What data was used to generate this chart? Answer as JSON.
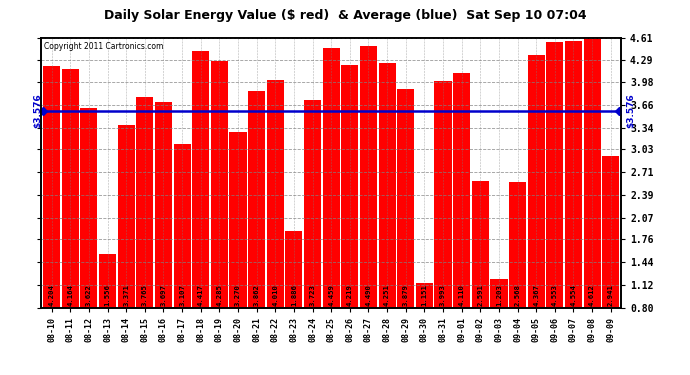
{
  "title": "Daily Solar Energy Value ($ red)  & Average (blue)  Sat Sep 10 07:04",
  "copyright": "Copyright 2011 Cartronics.com",
  "average": 3.576,
  "average_label": "$3.576",
  "bar_color": "#FF0000",
  "avg_line_color": "#0000CC",
  "background_color": "#FFFFFF",
  "plot_bg_color": "#FFFFFF",
  "ylim_min": 0.8,
  "ylim_max": 4.61,
  "yticks": [
    0.8,
    1.12,
    1.44,
    1.76,
    2.07,
    2.39,
    2.71,
    3.03,
    3.34,
    3.66,
    3.98,
    4.29,
    4.61
  ],
  "categories": [
    "08-10",
    "08-11",
    "08-12",
    "08-13",
    "08-14",
    "08-15",
    "08-16",
    "08-17",
    "08-18",
    "08-19",
    "08-20",
    "08-21",
    "08-22",
    "08-23",
    "08-24",
    "08-25",
    "08-26",
    "08-27",
    "08-28",
    "08-29",
    "08-30",
    "08-31",
    "09-01",
    "09-02",
    "09-03",
    "09-04",
    "09-05",
    "09-06",
    "09-07",
    "09-08",
    "09-09"
  ],
  "values": [
    4.204,
    4.164,
    3.622,
    1.556,
    3.371,
    3.765,
    3.697,
    3.107,
    4.417,
    4.285,
    3.27,
    3.862,
    4.01,
    1.886,
    3.723,
    4.459,
    4.219,
    4.49,
    4.251,
    3.879,
    1.151,
    3.993,
    4.11,
    2.591,
    1.203,
    2.568,
    4.367,
    4.553,
    4.554,
    4.612,
    2.941
  ]
}
